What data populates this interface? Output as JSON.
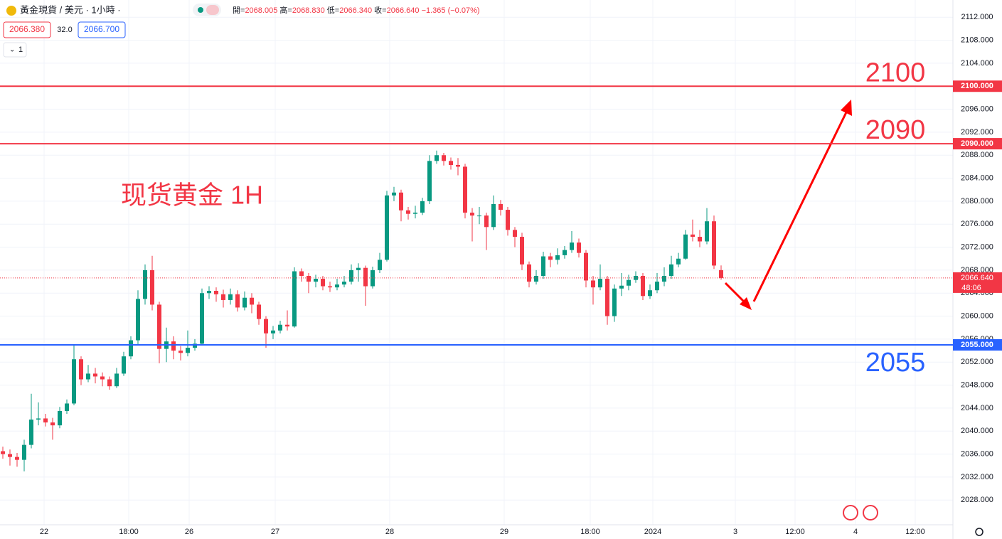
{
  "chart_data": {
    "type": "candlestick",
    "title": "黃金現貨 / 美元 · 1小時 ·",
    "ohlc_legend": [
      {
        "label": "開=",
        "value": "2068.005"
      },
      {
        "label": "高=",
        "value": "2068.830"
      },
      {
        "label": "低=",
        "value": "2066.340"
      },
      {
        "label": "收=",
        "value": "2066.640"
      }
    ],
    "change": "−1.365 (−0.07%)",
    "sell": "2066.380",
    "spread": "32.0",
    "buy": "2066.700",
    "indicators": "1",
    "annotation": "现货黄金 1H",
    "up_color": "#089981",
    "down_color": "#f23645",
    "grid": true,
    "series": {
      "open": [
        2036.5,
        2036.0,
        2035.5,
        2035.0,
        2037.6,
        2042.0,
        2042.2,
        2041.5,
        2041.0,
        2043.5,
        2044.8,
        2052.5,
        2049.0,
        2050.0,
        2049.5,
        2049.0,
        2047.8,
        2050.0,
        2053.0,
        2055.8,
        2063.0,
        2068.0,
        2062.0,
        2054.3,
        2055.6,
        2054.0,
        2053.6,
        2054.5,
        2055.2,
        2064.0,
        2064.4,
        2063.8,
        2062.8,
        2063.8,
        2061.5,
        2063.2,
        2062.0,
        2059.5,
        2057.0,
        2057.5,
        2058.5,
        2058.2,
        2067.8,
        2067.0,
        2066.0,
        2066.5,
        2065.2,
        2065.0,
        2065.5,
        2066.0,
        2068.0,
        2068.4,
        2065.2,
        2068.0,
        2069.8,
        2081.0,
        2081.5,
        2078.4,
        2077.8,
        2078.0,
        2080.0,
        2087.0,
        2088.0,
        2087.0,
        2086.3,
        2086.0,
        2078.0,
        2077.5,
        2077.5,
        2075.5,
        2079.5,
        2078.5,
        2075.0,
        2073.8,
        2069.0,
        2066.0,
        2067.0,
        2070.4,
        2069.8,
        2070.6,
        2071.5,
        2072.8,
        2071.0,
        2066.2,
        2065.0,
        2066.5,
        2060.0,
        2064.8,
        2065.3,
        2066.3,
        2067.0,
        2063.5,
        2064.5,
        2066.0,
        2067.0,
        2069.0,
        2070.0,
        2074.2,
        2073.8,
        2073.0,
        2076.5,
        2068.005
      ],
      "high": [
        2037.3,
        2036.8,
        2036.2,
        2038.5,
        2046.5,
        2045.0,
        2043.0,
        2042.3,
        2044.2,
        2045.5,
        2055.0,
        2053.0,
        2051.5,
        2051.0,
        2050.2,
        2049.5,
        2051.0,
        2053.8,
        2056.5,
        2064.5,
        2069.0,
        2070.5,
        2062.5,
        2058.0,
        2056.5,
        2054.8,
        2057.5,
        2056.0,
        2064.8,
        2065.2,
        2065.0,
        2064.6,
        2064.8,
        2064.5,
        2064.3,
        2064.0,
        2062.5,
        2060.0,
        2058.3,
        2059.2,
        2061.0,
        2068.5,
        2068.3,
        2067.5,
        2067.2,
        2067.0,
        2066.0,
        2066.5,
        2067.0,
        2069.0,
        2069.2,
        2068.8,
        2068.6,
        2071.0,
        2081.8,
        2082.5,
        2082.0,
        2079.0,
        2079.2,
        2080.6,
        2088.0,
        2088.8,
        2088.4,
        2087.6,
        2087.5,
        2086.5,
        2078.8,
        2079.0,
        2078.0,
        2081.0,
        2080.2,
        2079.0,
        2075.5,
        2074.5,
        2069.5,
        2068.0,
        2071.2,
        2071.0,
        2071.8,
        2072.2,
        2074.8,
        2073.5,
        2071.5,
        2067.0,
        2069.0,
        2067.0,
        2065.5,
        2067.5,
        2067.2,
        2067.8,
        2067.5,
        2065.5,
        2067.5,
        2068.5,
        2070.5,
        2071.0,
        2075.0,
        2076.8,
        2075.0,
        2078.8,
        2077.5,
        2068.83
      ],
      "low": [
        2035.2,
        2034.0,
        2033.8,
        2033.0,
        2037.0,
        2041.0,
        2040.8,
        2038.5,
        2040.5,
        2043.0,
        2044.5,
        2048.0,
        2048.5,
        2048.3,
        2047.8,
        2047.2,
        2047.5,
        2049.6,
        2052.5,
        2055.0,
        2062.0,
        2061.0,
        2051.8,
        2052.0,
        2052.5,
        2052.3,
        2053.0,
        2054.0,
        2055.0,
        2063.0,
        2062.5,
        2061.5,
        2062.0,
        2060.8,
        2061.0,
        2060.5,
        2058.5,
        2054.5,
        2056.0,
        2057.0,
        2057.5,
        2058.0,
        2066.0,
        2064.0,
        2065.0,
        2064.5,
        2064.2,
        2064.5,
        2065.0,
        2065.5,
        2066.0,
        2061.8,
        2064.8,
        2067.5,
        2069.5,
        2080.0,
        2076.5,
        2076.8,
        2077.0,
        2077.6,
        2079.5,
        2086.5,
        2086.2,
        2085.5,
        2084.5,
        2077.0,
        2073.0,
        2076.0,
        2071.5,
        2075.0,
        2077.5,
        2074.0,
        2072.0,
        2068.0,
        2065.0,
        2065.5,
        2066.5,
        2068.5,
        2069.0,
        2070.0,
        2071.0,
        2070.2,
        2065.0,
        2062.0,
        2064.5,
        2058.5,
        2059.0,
        2063.5,
        2064.5,
        2065.8,
        2062.8,
        2063.0,
        2064.0,
        2065.2,
        2066.5,
        2068.5,
        2069.8,
        2073.0,
        2072.0,
        2072.5,
        2068.2,
        2066.34
      ],
      "close": [
        2036.0,
        2035.5,
        2035.0,
        2037.6,
        2042.0,
        2042.2,
        2041.5,
        2041.0,
        2043.5,
        2044.8,
        2052.5,
        2049.0,
        2050.0,
        2049.5,
        2049.0,
        2047.8,
        2050.0,
        2053.0,
        2055.8,
        2063.0,
        2068.0,
        2062.0,
        2054.3,
        2055.6,
        2054.0,
        2053.6,
        2054.5,
        2055.2,
        2064.0,
        2064.4,
        2063.8,
        2062.8,
        2063.8,
        2061.5,
        2063.2,
        2062.0,
        2059.5,
        2057.0,
        2057.5,
        2058.5,
        2058.2,
        2067.8,
        2067.0,
        2066.0,
        2066.5,
        2065.2,
        2065.0,
        2065.5,
        2066.0,
        2068.0,
        2068.4,
        2065.2,
        2068.0,
        2069.8,
        2081.0,
        2081.5,
        2078.4,
        2077.8,
        2078.0,
        2080.0,
        2087.0,
        2088.0,
        2087.0,
        2086.3,
        2086.0,
        2078.0,
        2077.5,
        2077.5,
        2075.5,
        2079.5,
        2078.5,
        2075.0,
        2073.8,
        2069.0,
        2066.0,
        2067.0,
        2070.4,
        2069.8,
        2070.6,
        2071.5,
        2072.8,
        2071.0,
        2066.2,
        2065.0,
        2066.5,
        2060.0,
        2064.8,
        2065.3,
        2066.3,
        2067.0,
        2063.5,
        2064.5,
        2066.0,
        2067.0,
        2069.0,
        2070.0,
        2074.2,
        2073.8,
        2073.0,
        2076.5,
        2068.8,
        2066.64
      ]
    },
    "levels": [
      {
        "value": 2100,
        "label": "2100",
        "axis_label": "2100.000",
        "color": "#f23645"
      },
      {
        "value": 2090,
        "label": "2090",
        "axis_label": "2090.000",
        "color": "#f23645"
      },
      {
        "value": 2055,
        "label": "2055",
        "axis_label": "2055.000",
        "color": "#2962ff"
      }
    ],
    "last_price": {
      "value": 2066.64,
      "label": "2066.640",
      "countdown": "48:06"
    },
    "xlim": [
      -0.4,
      133.6
    ],
    "xticks": [
      {
        "value": 5.8,
        "label": "22"
      },
      {
        "value": 17.7,
        "label": "18:00"
      },
      {
        "value": 26.2,
        "label": "26"
      },
      {
        "value": 38.3,
        "label": "27"
      },
      {
        "value": 54.4,
        "label": "28"
      },
      {
        "value": 70.5,
        "label": "29"
      },
      {
        "value": 82.6,
        "label": "18:00"
      },
      {
        "value": 91.4,
        "label": "2024"
      },
      {
        "value": 103,
        "label": "3"
      },
      {
        "value": 111.4,
        "label": "12:00"
      },
      {
        "value": 119.9,
        "label": "4"
      },
      {
        "value": 128.3,
        "label": "12:00"
      }
    ],
    "ylim": [
      2023.7,
      2115
    ],
    "yticks": [
      {
        "value": 2028,
        "label": "2028.000"
      },
      {
        "value": 2032,
        "label": "2032.000"
      },
      {
        "value": 2036,
        "label": "2036.000"
      },
      {
        "value": 2040,
        "label": "2040.000"
      },
      {
        "value": 2044,
        "label": "2044.000"
      },
      {
        "value": 2048,
        "label": "2048.000"
      },
      {
        "value": 2052,
        "label": "2052.000"
      },
      {
        "value": 2056,
        "label": "2056.000"
      },
      {
        "value": 2060,
        "label": "2060.000"
      },
      {
        "value": 2064,
        "label": "2064.000"
      },
      {
        "value": 2068,
        "label": "2068.000"
      },
      {
        "value": 2072,
        "label": "2072.000"
      },
      {
        "value": 2076,
        "label": "2076.000"
      },
      {
        "value": 2080,
        "label": "2080.000"
      },
      {
        "value": 2084,
        "label": "2084.000"
      },
      {
        "value": 2088,
        "label": "2088.000"
      },
      {
        "value": 2092,
        "label": "2092.000"
      },
      {
        "value": 2096,
        "label": "2096.000"
      },
      {
        "value": 2100,
        "label": "2100.000"
      },
      {
        "value": 2104,
        "label": "2104.000"
      },
      {
        "value": 2108,
        "label": "2108.000"
      },
      {
        "value": 2112,
        "label": "2112.000"
      }
    ]
  }
}
